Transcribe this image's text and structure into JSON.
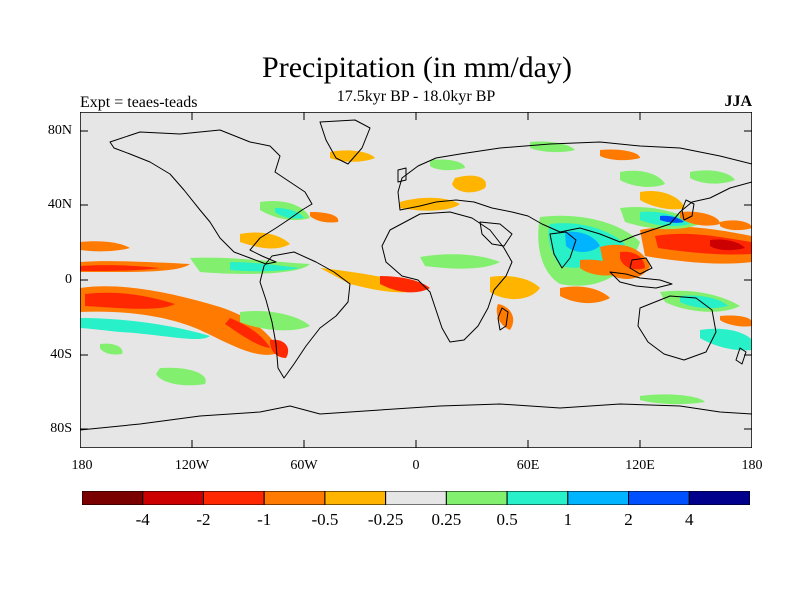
{
  "title": "Precipitation (in mm/day)",
  "subtitle": "17.5kyr BP - 18.0kyr BP",
  "left_label": "Expt = teaes-teads",
  "right_label": "JJA",
  "map": {
    "type": "filled contour map",
    "projection": "cylindrical equidistant",
    "lat_labels": [
      "80N",
      "40N",
      "0",
      "40S",
      "80S"
    ],
    "lon_labels": [
      "180",
      "120W",
      "60W",
      "0",
      "60E",
      "120E",
      "180"
    ]
  },
  "colorbar": {
    "colors": [
      "#7a0000",
      "#cc0000",
      "#ff2800",
      "#ff7a00",
      "#ffb400",
      "#e6e6e6",
      "#82f06e",
      "#28f0c8",
      "#00b4ff",
      "#0050ff",
      "#00008c"
    ],
    "labels": [
      "-4",
      "-2",
      "-1",
      "-0.5",
      "-0.25",
      "0.25",
      "0.5",
      "1",
      "2",
      "4"
    ]
  }
}
